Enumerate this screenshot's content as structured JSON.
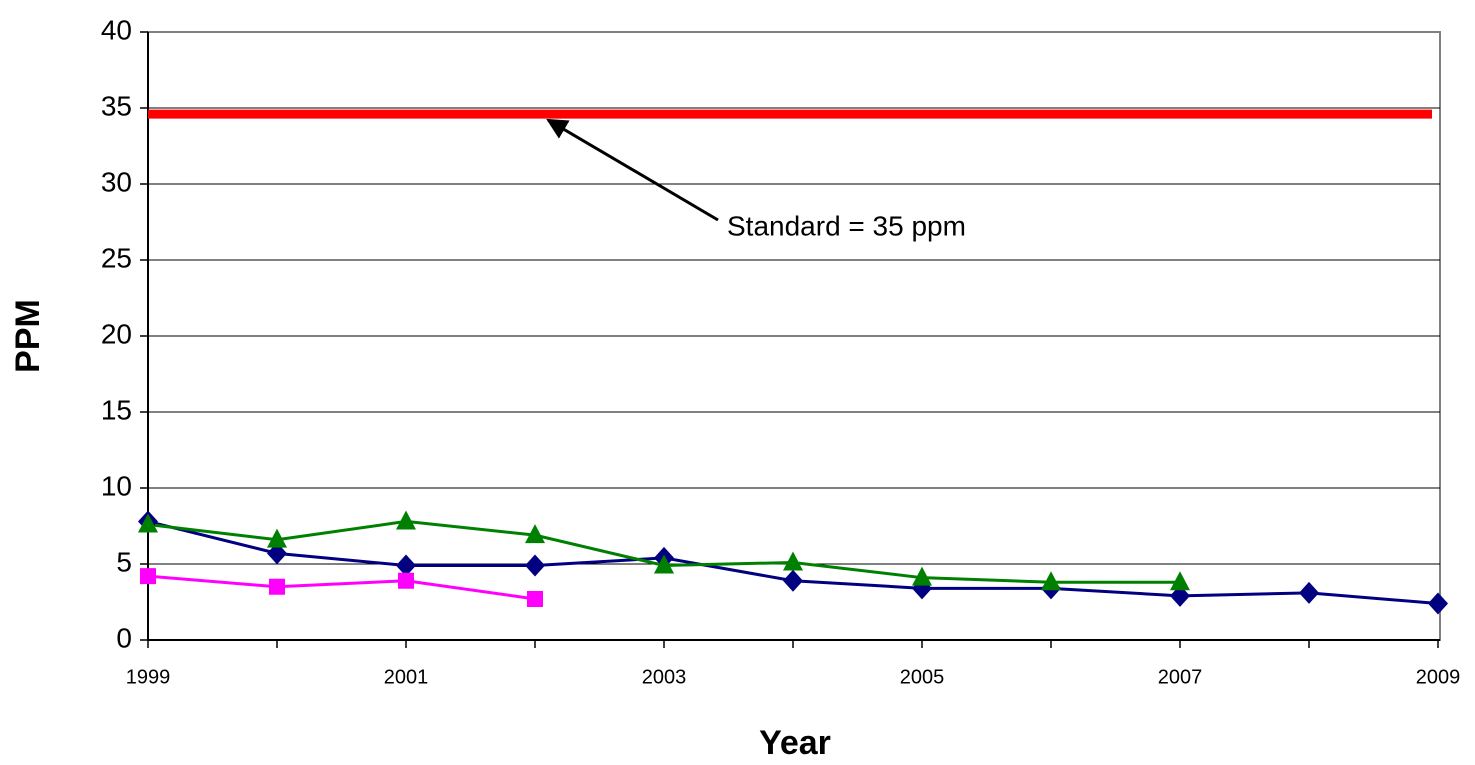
{
  "chart_data": {
    "type": "line",
    "x": [
      1999,
      2000,
      2001,
      2002,
      2003,
      2004,
      2005,
      2006,
      2007,
      2008,
      2009
    ],
    "xlim": [
      1999,
      2009
    ],
    "xticks": [
      1999,
      2001,
      2003,
      2005,
      2007,
      2009
    ],
    "ylim": [
      0,
      40
    ],
    "yticks": [
      0,
      5,
      10,
      15,
      20,
      25,
      30,
      35,
      40
    ],
    "grid": true,
    "x_label": "Year",
    "y_label": "PPM",
    "series": [
      {
        "color": "#000080",
        "marker": "diamond",
        "values": [
          7.8,
          5.7,
          4.9,
          4.9,
          5.4,
          3.9,
          3.4,
          3.4,
          2.9,
          3.1,
          2.4
        ]
      },
      {
        "color": "#008000",
        "marker": "triangle",
        "values": [
          7.6,
          6.6,
          7.8,
          6.9,
          4.9,
          5.1,
          4.1,
          3.8,
          3.8,
          null,
          null
        ]
      },
      {
        "color": "#ff00ff",
        "marker": "square",
        "values": [
          4.2,
          3.5,
          3.9,
          2.7,
          null,
          null,
          null,
          null,
          null,
          null,
          null
        ]
      }
    ],
    "reference_line": {
      "value": 34.6,
      "color": "#ff0000"
    },
    "annotation": "Standard = 35 ppm"
  }
}
